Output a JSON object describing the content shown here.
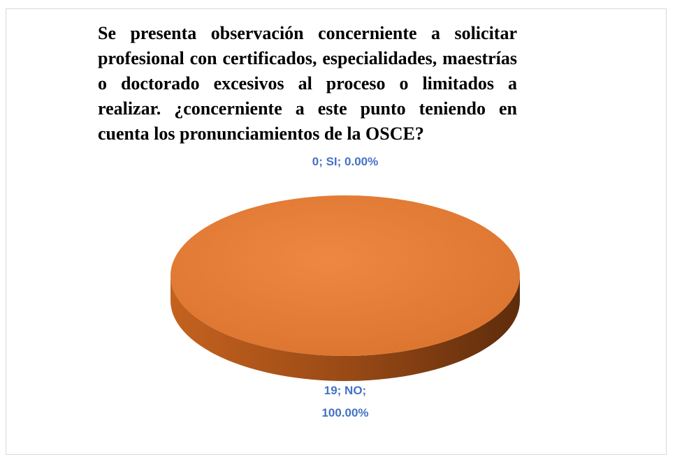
{
  "chart_data": {
    "type": "pie",
    "title": "Se presenta observación concerniente a solicitar profesional con certificados, especialidades, maestrías o doctorado excesivos al proceso o limitados a realizar. ¿concerniente a este punto teniendo en cuenta los pronunciamientos de la OSCE?",
    "categories": [
      "SI",
      "NO"
    ],
    "values": [
      0,
      19
    ],
    "value_labels": [
      "0; SI; 0.00%",
      "19; NO; 100.00%"
    ],
    "colors": [
      "#4472c4",
      "#ed7d31"
    ]
  }
}
